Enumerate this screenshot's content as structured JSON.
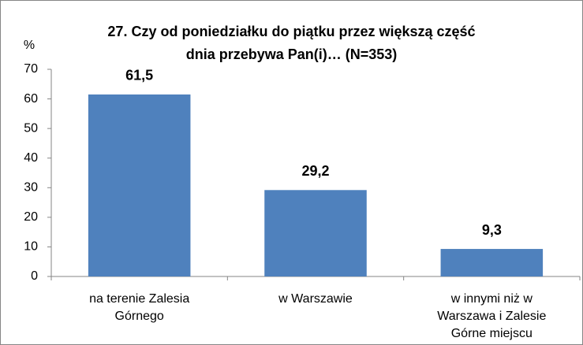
{
  "chart_data": {
    "type": "bar",
    "title": "27. Czy od poniedziałku do piątku przez większą część\ndnia przebywa Pan(i)… (N=353)",
    "y_label": "%",
    "categories": [
      "na terenie Zalesia\nGórnego",
      "w Warszawie",
      "w innymi niż w\nWarszawa i Zalesie\nGórne miejscu"
    ],
    "values": [
      61.5,
      29.2,
      9.3
    ],
    "value_labels": [
      "61,5",
      "29,2",
      "9,3"
    ],
    "color": "#4f81bd",
    "ylim": [
      0,
      70
    ],
    "yticks": [
      0,
      10,
      20,
      30,
      40,
      50,
      60,
      70
    ],
    "grid": false
  }
}
